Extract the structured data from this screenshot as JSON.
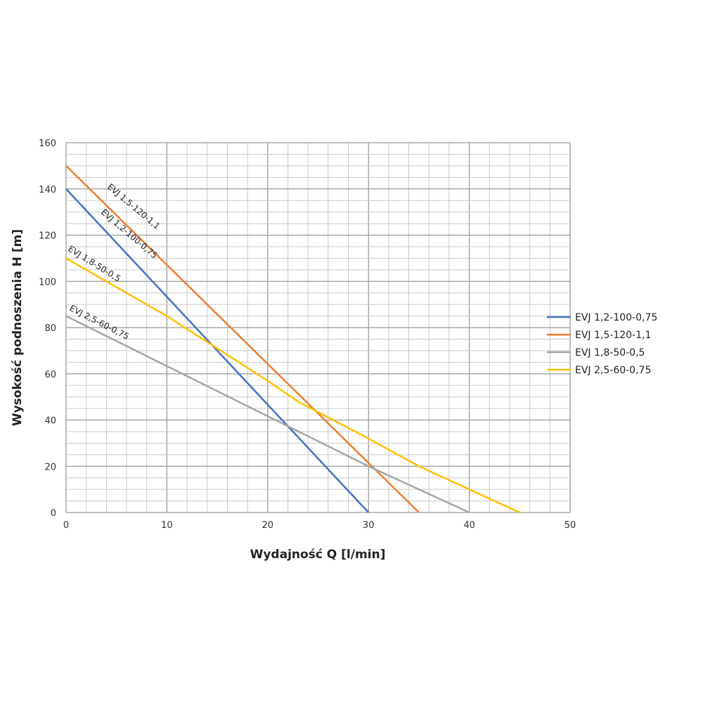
{
  "chart_data": {
    "type": "line",
    "title": "",
    "xlabel": "Wydajność Q [l/min]",
    "ylabel": "Wysokość podnoszenia H [m]",
    "xlim": [
      0,
      50
    ],
    "ylim": [
      0,
      160
    ],
    "xticks": [
      0,
      10,
      20,
      30,
      40,
      50
    ],
    "yticks": [
      0,
      20,
      40,
      60,
      80,
      100,
      120,
      140,
      160
    ],
    "grid": true,
    "legend_position": "right",
    "series": [
      {
        "name": "EVJ 1,2-100-0,75",
        "color": "#4472c4",
        "x": [
          0,
          30
        ],
        "y": [
          140,
          0
        ],
        "annotation": "EVJ 1,2-100-0,75"
      },
      {
        "name": "EVJ 1,5-120-1,1",
        "color": "#ed7d31",
        "x": [
          0,
          35
        ],
        "y": [
          150,
          0
        ],
        "annotation": "EVJ 1,5-120-1,1"
      },
      {
        "name": "EVJ 1,8-50-0,5",
        "color": "#a5a5a5",
        "x": [
          0,
          30,
          40
        ],
        "y": [
          85,
          20,
          0
        ],
        "annotation": "EVJ 1,8-50-0,5"
      },
      {
        "name": "EVJ 2,5-60-0,75",
        "color": "#ffc000",
        "x": [
          0,
          10,
          20,
          23,
          30,
          35,
          40,
          45
        ],
        "y": [
          110,
          85,
          57,
          48,
          32,
          20,
          10,
          0
        ],
        "annotation": "EVJ 2,5-60-0,75"
      }
    ]
  }
}
